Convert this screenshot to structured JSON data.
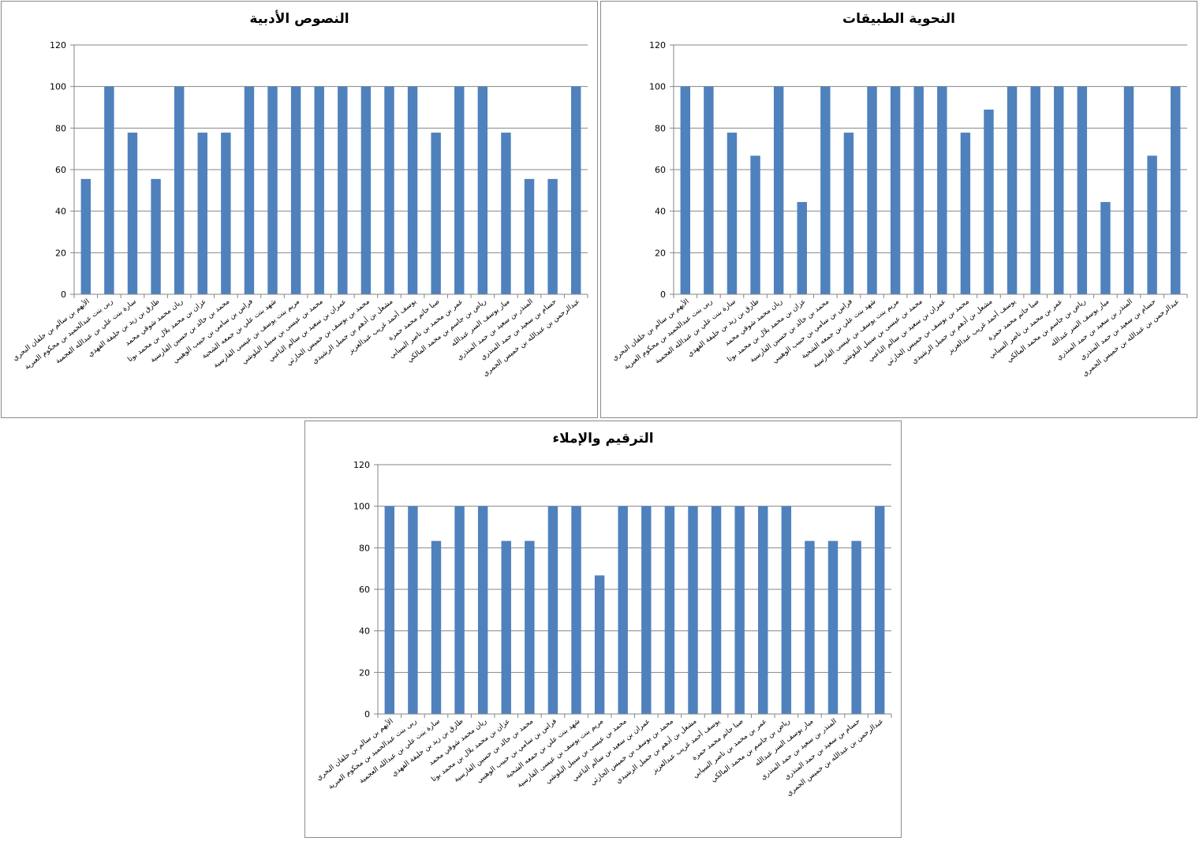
{
  "colors": {
    "bar": "#4f81bd",
    "grid": "#868686",
    "axis": "#868686"
  },
  "chart_data": [
    {
      "type": "bar",
      "title": "النصوص الأدبية",
      "ylim": [
        0,
        120
      ],
      "yticks": [
        0,
        20,
        40,
        60,
        80,
        100,
        120
      ],
      "grid": true,
      "legend": "none",
      "categories": [
        "الأيهم بن سالم بن خلفان البحري",
        "ربى بنت عبدالحميد بن محكوم العبرية",
        "سارة بنت علي بن عبدالله العجمية",
        "طارق بن زيد بن خليفة الفهدي",
        "ريان محمد شوقي محمد",
        "عزان بن محمد بلال بن محمد بوتا",
        "محمد بن خالد بن حسين الفارسية",
        "فراس بن سامي بن حبيب الوهيبي",
        "شهد بنت علي بن جمعه الشحية",
        "مريم بنت يوسف بن عيسى الفارسية",
        "محمد بن عيسى بن سبيل البلوشي",
        "عمران بن سعيد بن سالم الناعبي",
        "محمد بن يوسف بن خميس الحارثي",
        "مشعل بن أدهم بن جميل الرشيدي",
        "يوسف أحمد غريب عبدالعزيز",
        "صبا حاتم محمد حمزة",
        "عمر بن محمد بن ناصر السيابي",
        "رياض بن جاسم بن محمد المالكي",
        "ميار يوسف السر عبدالله",
        "المنذر بن سعيد بن حمد المنذري",
        "حسام بن سعيد بن حمد المنذري",
        "عبدالرحمن بن عبدالله بن خميس الجمري"
      ],
      "values": [
        55.5,
        100,
        77.8,
        55.5,
        100,
        77.8,
        77.8,
        100,
        100,
        100,
        100,
        100,
        100,
        100,
        100,
        77.8,
        100,
        100,
        77.8,
        55.5,
        55.5,
        100
      ]
    },
    {
      "type": "bar",
      "title": "النحوية الطبيقات",
      "ylim": [
        0,
        120
      ],
      "yticks": [
        0,
        20,
        40,
        60,
        80,
        100,
        120
      ],
      "grid": true,
      "legend": "none",
      "categories": [
        "الأيهم بن سالم بن خلفان البحري",
        "ربى بنت عبدالحميد بن محكوم العبرية",
        "سارة بنت علي بن عبدالله العجمية",
        "طارق بن زيد بن خليفة الفهدي",
        "ريان محمد شوقي محمد",
        "عزان بن محمد بلال بن محمد بوتا",
        "محمد بن خالد بن حسين الفارسية",
        "فراس بن سامي بن حبيب الوهيبي",
        "شهد بنت علي بن جمعه الشحية",
        "مريم بنت يوسف بن عيسى الفارسية",
        "محمد بن عيسى بن سبيل البلوشي",
        "عمران بن سعيد بن سالم الناعبي",
        "محمد بن يوسف بن خميس الحارثي",
        "مشعل بن أدهم بن جميل الرشيدي",
        "يوسف أحمد غريب عبدالعزيز",
        "صبا حاتم محمد حمزة",
        "عمر بن محمد بن ناصر السيابي",
        "رياض بن جاسم بن محمد المالكي",
        "ميار يوسف السر عبدالله",
        "المنذر بن سعيد بن حمد المنذري",
        "حسام بن سعيد بن حمد المنذري",
        "عبدالرحمن بن عبدالله بن خميس الجمري"
      ],
      "values": [
        100,
        100,
        77.8,
        66.7,
        100,
        44.4,
        100,
        77.8,
        100,
        100,
        100,
        100,
        77.8,
        88.9,
        100,
        100,
        100,
        100,
        44.4,
        100,
        66.7,
        100
      ]
    },
    {
      "type": "bar",
      "title": "الترقيم والإملاء",
      "ylim": [
        0,
        120
      ],
      "yticks": [
        0,
        20,
        40,
        60,
        80,
        100,
        120
      ],
      "grid": true,
      "legend": "none",
      "categories": [
        "الأيهم بن سالم بن خلفان البحري",
        "ربى بنت عبدالحميد بن محكوم العبرية",
        "سارة بنت علي بن عبدالله العجمية",
        "طارق بن زيد بن خليفة الفهدي",
        "ريان محمد شوقي محمد",
        "عزان بن محمد بلال بن محمد بوتا",
        "محمد بن خالد بن حسين الفارسية",
        "فراس بن سامي بن حبيب الوهيبي",
        "شهد بنت علي بن جمعه الشحية",
        "مريم بنت يوسف بن عيسى الفارسية",
        "محمد بن عيسى بن سبيل البلوشي",
        "عمران بن سعيد بن سالم الناعبي",
        "محمد بن يوسف بن خميس الحارثي",
        "مشعل بن أدهم بن جميل الرشيدي",
        "يوسف أحمد غريب عبدالعزيز",
        "صبا حاتم محمد حمزة",
        "عمر بن محمد بن ناصر السيابي",
        "رياض بن جاسم بن محمد المالكي",
        "ميار يوسف السر عبدالله",
        "المنذر بن سعيد بن حمد المنذري",
        "حسام بن سعيد بن حمد المنذري",
        "عبدالرحمن بن عبدالله بن خميس الجمري"
      ],
      "values": [
        100,
        100,
        83.3,
        100,
        100,
        83.3,
        83.3,
        100,
        100,
        66.7,
        100,
        100,
        100,
        100,
        100,
        100,
        100,
        100,
        83.3,
        83.3,
        83.3,
        100
      ]
    }
  ]
}
